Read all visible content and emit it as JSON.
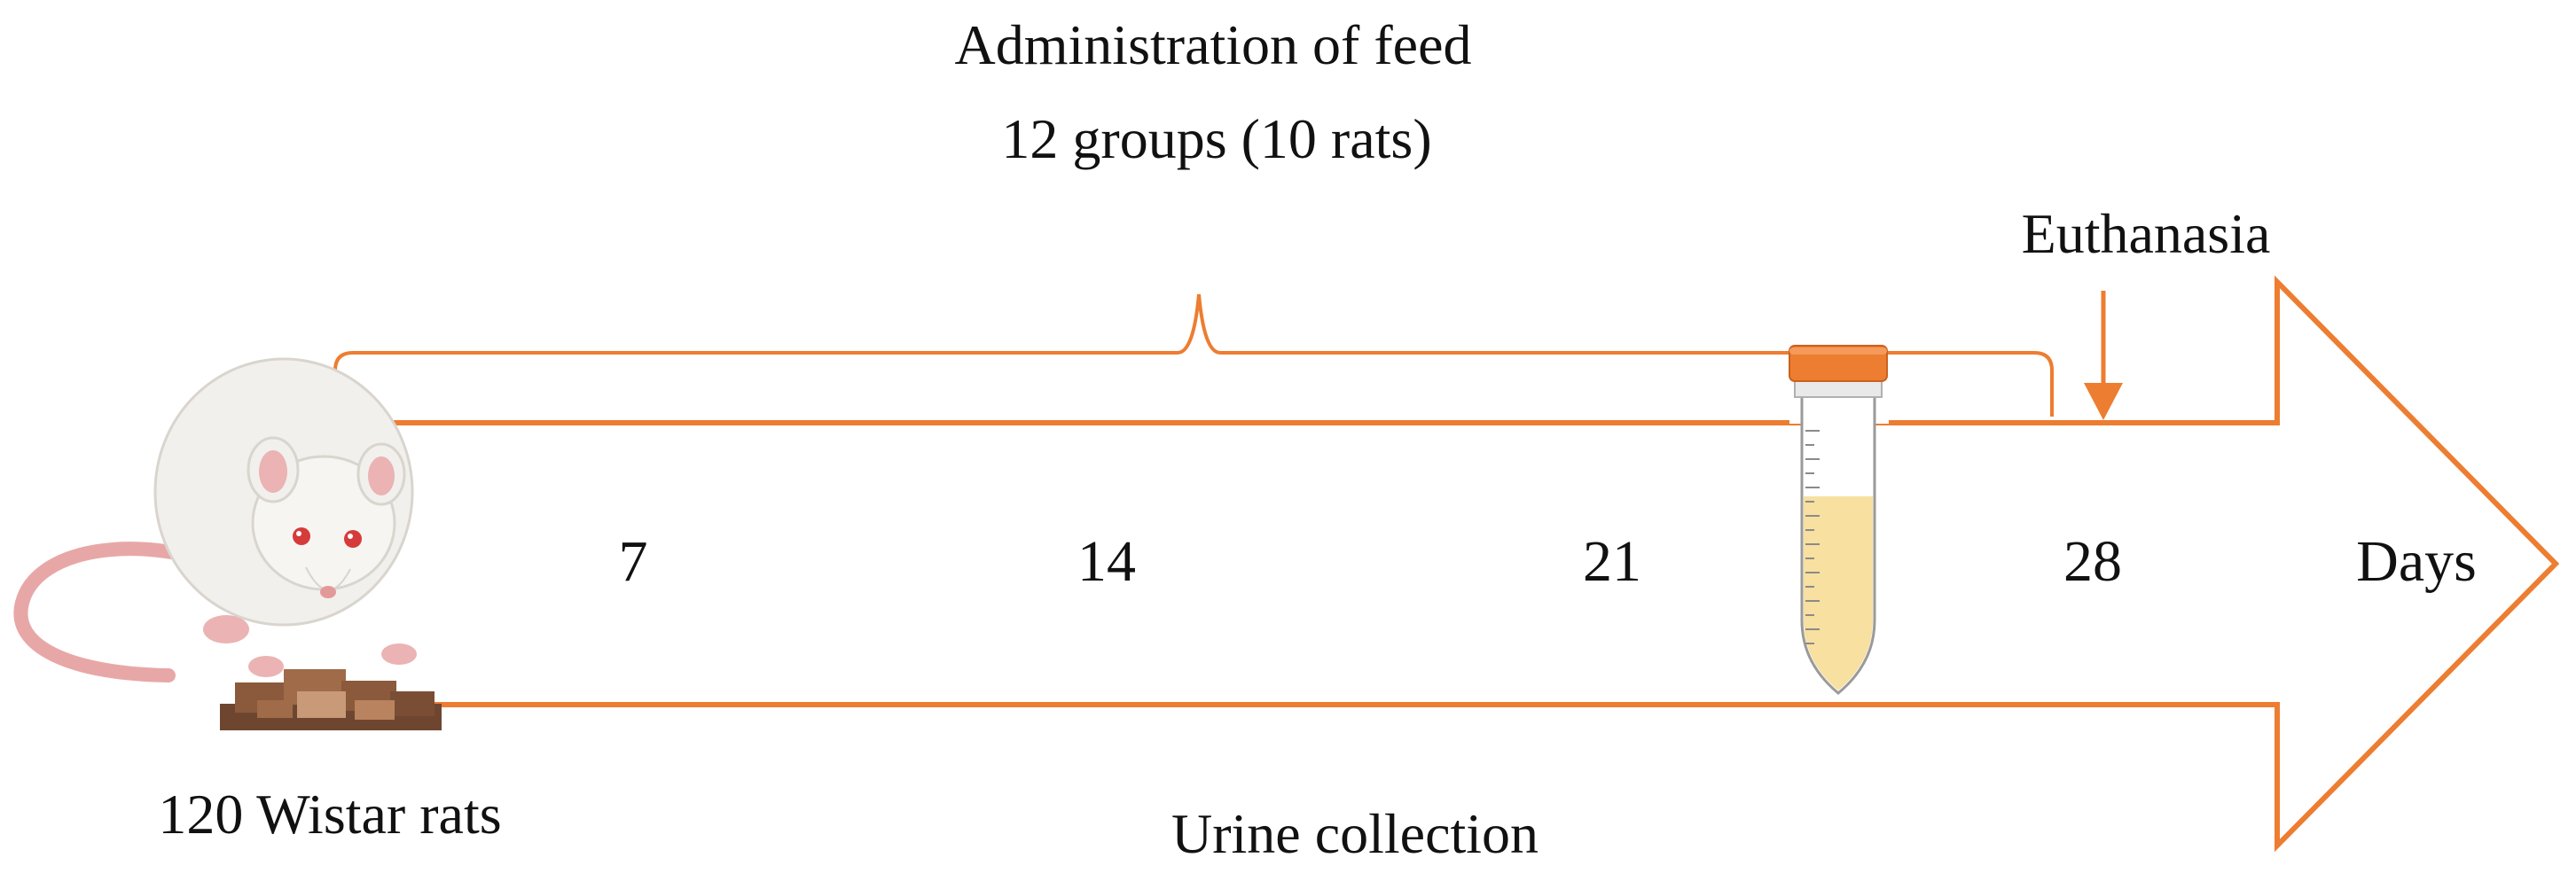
{
  "header": {
    "line1": "Administration of feed",
    "line2": "12 groups (10 rats)"
  },
  "events": {
    "euthanasia": "Euthanasia",
    "urine_collection": "Urine collection"
  },
  "timeline": {
    "ticks": [
      "7",
      "14",
      "21",
      "28"
    ],
    "unit_label": "Days"
  },
  "subject": {
    "caption": "120 Wistar rats"
  },
  "colors": {
    "arrow": "#ED7D31",
    "tube_cap": "#ED7D31",
    "tube_liquid": "#F7E0A0",
    "rat_body": "#F2F0EC",
    "food": "#8B5A3C",
    "text": "#111111"
  },
  "icons": {
    "rat": "rat-icon",
    "tube": "sample-tube-icon",
    "food": "food-pellets-icon"
  }
}
